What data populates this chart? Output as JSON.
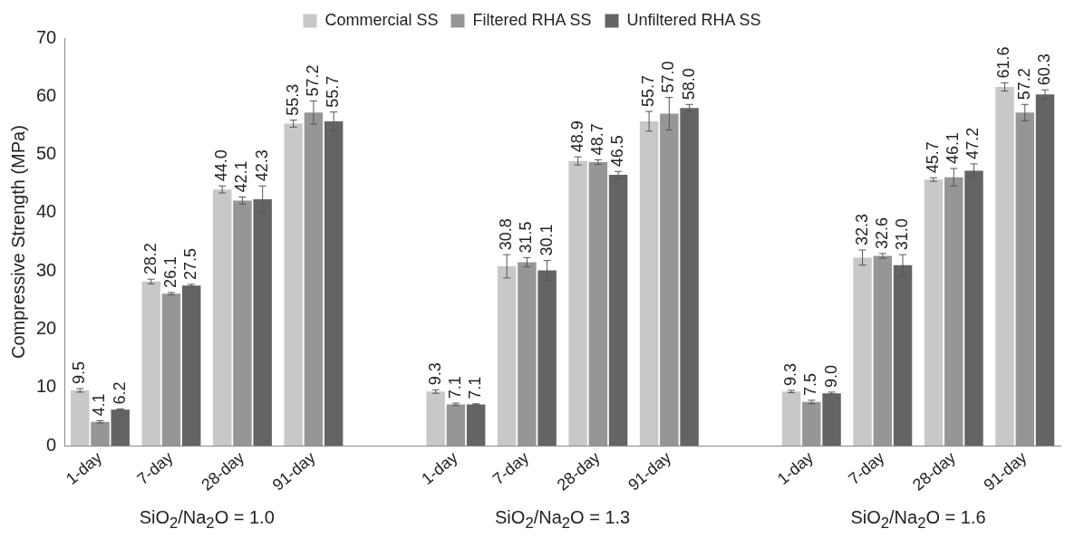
{
  "chart_data": {
    "type": "bar",
    "ylabel": "Compressive Strength (MPa)",
    "categories": [
      "1-day",
      "7-day",
      "28-day",
      "91-day",
      null,
      "1-day",
      "7-day",
      "28-day",
      "91-day",
      null,
      "1-day",
      "7-day",
      "28-day",
      "91-day"
    ],
    "series": [
      {
        "name": "Commercial SS",
        "color": "#c8c8c8",
        "values": [
          9.5,
          28.2,
          44.0,
          55.3,
          null,
          9.3,
          30.8,
          48.9,
          55.7,
          null,
          9.3,
          32.3,
          45.7,
          61.6
        ],
        "errors": [
          0.3,
          0.4,
          0.6,
          0.6,
          null,
          0.3,
          2.0,
          0.7,
          1.7,
          null,
          0.2,
          1.3,
          0.3,
          0.7
        ],
        "value_labels": [
          "9.5",
          "28.2",
          "44.0",
          "55.3",
          null,
          "9.3",
          "30.8",
          "48.9",
          "55.7",
          null,
          "9.3",
          "32.3",
          "45.7",
          "61.6"
        ]
      },
      {
        "name": "Filtered RHA SS",
        "color": "#969696",
        "values": [
          4.1,
          26.1,
          42.1,
          57.2,
          null,
          7.1,
          31.5,
          48.7,
          57.0,
          null,
          7.5,
          32.6,
          46.1,
          57.2
        ],
        "errors": [
          0.2,
          0.2,
          0.6,
          2.0,
          null,
          0.2,
          0.8,
          0.4,
          2.8,
          null,
          0.3,
          0.4,
          1.5,
          1.4
        ],
        "value_labels": [
          "4.1",
          "26.1",
          "42.1",
          "57.2",
          null,
          "7.1",
          "31.5",
          "48.7",
          "57.0",
          null,
          "7.5",
          "32.6",
          "46.1",
          "57.2"
        ]
      },
      {
        "name": "Unfiltered RHA SS",
        "color": "#646464",
        "values": [
          6.2,
          27.5,
          42.3,
          55.7,
          null,
          7.1,
          30.1,
          46.5,
          58.0,
          null,
          9.0,
          31.0,
          47.2,
          60.3
        ],
        "errors": [
          0.1,
          0.2,
          2.3,
          1.6,
          null,
          0.1,
          1.7,
          0.6,
          0.6,
          null,
          0.2,
          1.8,
          1.2,
          0.8
        ],
        "value_labels": [
          "6.2",
          "27.5",
          "42.3",
          "55.7",
          null,
          "7.1",
          "30.1",
          "46.5",
          "58.0",
          null,
          "9.0",
          "31.0",
          "47.2",
          "60.3"
        ]
      }
    ],
    "ylim": [
      0,
      70
    ],
    "yticks": [
      0,
      10,
      20,
      30,
      40,
      50,
      60,
      70
    ],
    "legend": "top",
    "grid": false,
    "annotations": [
      "SiO$_{2}$/Na$_{2}$O = 1.0",
      "SiO$_{2}$/Na$_{2}$O = 1.3",
      "SiO$_{2}$/Na$_{2}$O = 1.6"
    ]
  }
}
